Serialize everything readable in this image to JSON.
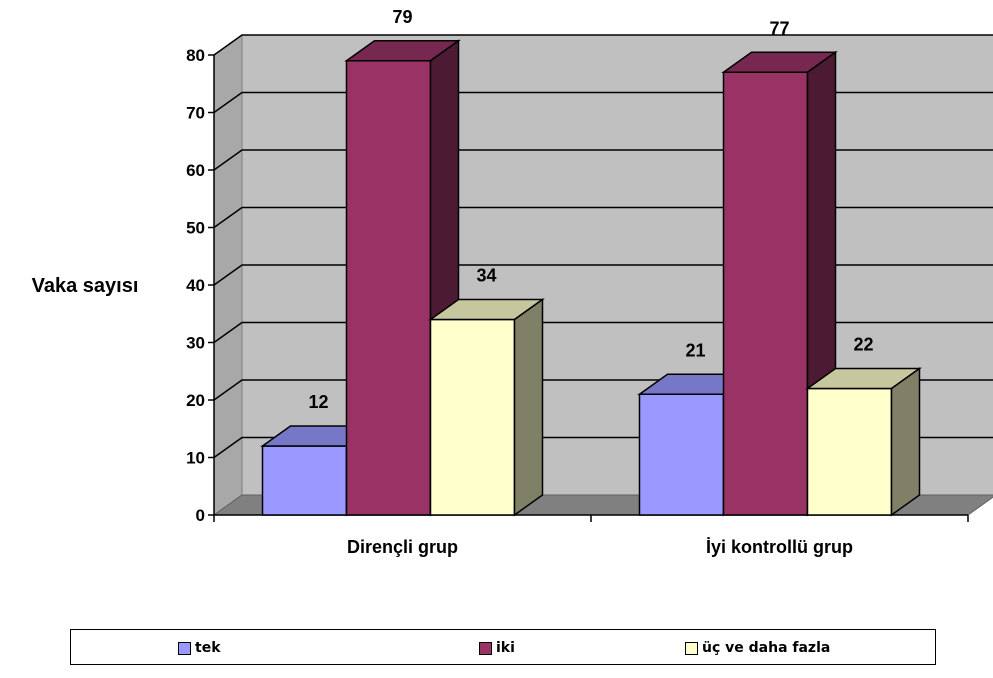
{
  "chart_data": {
    "type": "bar",
    "ylabel": "Vaka sayısı",
    "ylim": [
      0,
      80
    ],
    "yticks": [
      0,
      10,
      20,
      30,
      40,
      50,
      60,
      70,
      80
    ],
    "categories": [
      "Dirençli grup",
      "İyi kontrollü grup"
    ],
    "series": [
      {
        "name": "tek",
        "color": "#9999ff",
        "values": [
          12,
          21
        ]
      },
      {
        "name": "iki",
        "color": "#993366",
        "values": [
          79,
          77
        ]
      },
      {
        "name": "üç ve daha fazla",
        "color": "#ffffcc",
        "values": [
          34,
          22
        ]
      }
    ],
    "grid": true,
    "legend": "bottom",
    "three_d": true
  }
}
